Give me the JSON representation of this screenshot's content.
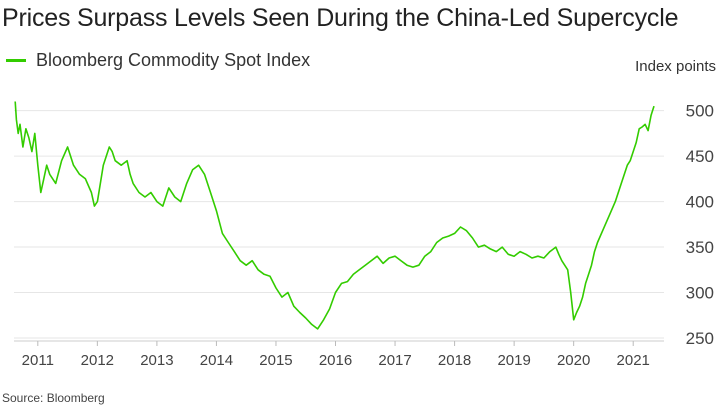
{
  "title": "Prices Surpass Levels Seen During the China-Led Supercycle",
  "unit_label": "Index points",
  "source": "Source: Bloomberg",
  "colors": {
    "line": "#33cc00",
    "grid": "#e6e6e6",
    "text": "#444444"
  },
  "chart_data": {
    "type": "line",
    "title": "Prices Surpass Levels Seen During the China-Led Supercycle",
    "ylabel": "Index points",
    "xlim": [
      2010.6,
      2021.45
    ],
    "ylim": [
      250,
      515
    ],
    "yticks": [
      250,
      300,
      350,
      400,
      450,
      500
    ],
    "xticks": [
      2011,
      2012,
      2013,
      2014,
      2015,
      2016,
      2017,
      2018,
      2019,
      2020,
      2021
    ],
    "grid": true,
    "legend": "top-left",
    "series": [
      {
        "name": "Bloomberg Commodity Spot Index",
        "x": [
          2010.62,
          2010.64,
          2010.67,
          2010.7,
          2010.75,
          2010.8,
          2010.85,
          2010.9,
          2010.95,
          2011.0,
          2011.05,
          2011.1,
          2011.15,
          2011.2,
          2011.3,
          2011.4,
          2011.5,
          2011.6,
          2011.7,
          2011.8,
          2011.9,
          2011.95,
          2012.0,
          2012.1,
          2012.15,
          2012.2,
          2012.25,
          2012.3,
          2012.4,
          2012.5,
          2012.55,
          2012.6,
          2012.7,
          2012.8,
          2012.9,
          2013.0,
          2013.1,
          2013.2,
          2013.3,
          2013.4,
          2013.5,
          2013.6,
          2013.7,
          2013.8,
          2013.9,
          2014.0,
          2014.1,
          2014.2,
          2014.3,
          2014.4,
          2014.5,
          2014.6,
          2014.7,
          2014.8,
          2014.9,
          2015.0,
          2015.1,
          2015.2,
          2015.3,
          2015.4,
          2015.5,
          2015.6,
          2015.7,
          2015.8,
          2015.9,
          2016.0,
          2016.1,
          2016.2,
          2016.3,
          2016.4,
          2016.5,
          2016.6,
          2016.7,
          2016.8,
          2016.9,
          2017.0,
          2017.1,
          2017.2,
          2017.3,
          2017.4,
          2017.5,
          2017.6,
          2017.7,
          2017.8,
          2017.9,
          2018.0,
          2018.1,
          2018.2,
          2018.3,
          2018.4,
          2018.5,
          2018.6,
          2018.7,
          2018.8,
          2018.9,
          2019.0,
          2019.1,
          2019.2,
          2019.3,
          2019.4,
          2019.5,
          2019.6,
          2019.7,
          2019.75,
          2019.8,
          2019.85,
          2019.9,
          2019.95,
          2020.0,
          2020.05,
          2020.1,
          2020.15,
          2020.2,
          2020.25,
          2020.3,
          2020.35,
          2020.4,
          2020.5,
          2020.6,
          2020.7,
          2020.8,
          2020.9,
          2020.95,
          2021.0,
          2021.05,
          2021.1,
          2021.15,
          2021.2,
          2021.25,
          2021.3,
          2021.35
        ],
        "y": [
          510,
          490,
          475,
          485,
          460,
          480,
          470,
          455,
          475,
          440,
          410,
          425,
          440,
          430,
          420,
          445,
          460,
          440,
          430,
          425,
          410,
          395,
          400,
          440,
          450,
          460,
          455,
          445,
          440,
          445,
          430,
          420,
          410,
          405,
          410,
          400,
          395,
          415,
          405,
          400,
          420,
          435,
          440,
          430,
          410,
          390,
          365,
          355,
          345,
          335,
          330,
          335,
          325,
          320,
          318,
          305,
          295,
          300,
          285,
          278,
          272,
          265,
          260,
          270,
          282,
          300,
          310,
          312,
          320,
          325,
          330,
          335,
          340,
          332,
          338,
          340,
          335,
          330,
          328,
          330,
          340,
          345,
          355,
          360,
          362,
          365,
          372,
          368,
          360,
          350,
          352,
          348,
          345,
          350,
          342,
          340,
          345,
          342,
          338,
          340,
          338,
          345,
          350,
          342,
          335,
          330,
          325,
          300,
          270,
          278,
          285,
          295,
          310,
          320,
          330,
          345,
          355,
          370,
          385,
          400,
          420,
          440,
          445,
          455,
          465,
          480,
          482,
          485,
          478,
          495,
          505
        ]
      }
    ]
  }
}
